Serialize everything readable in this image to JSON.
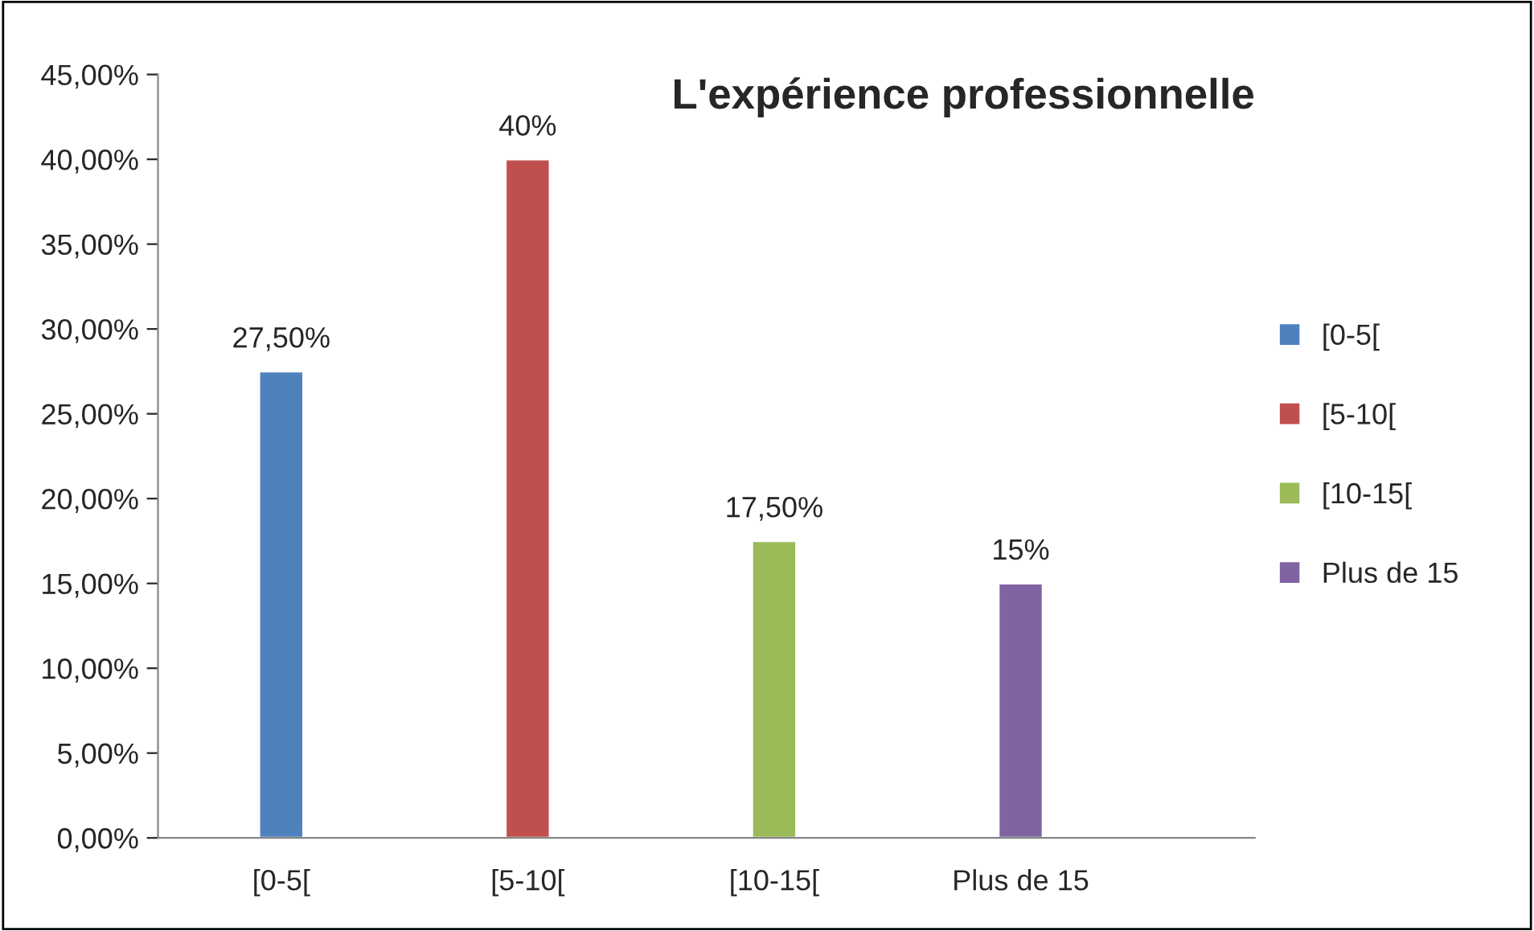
{
  "chart_data": {
    "type": "bar",
    "title": "L'expérience professionnelle",
    "categories": [
      "[0-5[",
      "[5-10[",
      "[10-15[",
      "Plus de 15"
    ],
    "series": [
      {
        "name": "[0-5[",
        "color": "#4f81bd",
        "values": [
          27.5,
          null,
          null,
          null
        ],
        "value_labels": [
          "27,50%",
          null,
          null,
          null
        ]
      },
      {
        "name": "[5-10[",
        "color": "#c0504d",
        "values": [
          null,
          40,
          null,
          null
        ],
        "value_labels": [
          null,
          "40%",
          null,
          null
        ]
      },
      {
        "name": "[10-15[",
        "color": "#9bbb59",
        "values": [
          null,
          null,
          17.5,
          null
        ],
        "value_labels": [
          null,
          null,
          "17,50%",
          null
        ]
      },
      {
        "name": "Plus de 15",
        "color": "#8064a2",
        "values": [
          null,
          null,
          null,
          15
        ],
        "value_labels": [
          null,
          null,
          null,
          "15%"
        ]
      }
    ],
    "ylim": [
      0,
      45
    ],
    "yticks": [
      {
        "value": 0,
        "label": "0,00%"
      },
      {
        "value": 5,
        "label": "5,00%"
      },
      {
        "value": 10,
        "label": "10,00%"
      },
      {
        "value": 15,
        "label": "15,00%"
      },
      {
        "value": 20,
        "label": "20,00%"
      },
      {
        "value": 25,
        "label": "25,00%"
      },
      {
        "value": 30,
        "label": "30,00%"
      },
      {
        "value": 35,
        "label": "35,00%"
      },
      {
        "value": 40,
        "label": "40,00%"
      },
      {
        "value": 45,
        "label": "45,00%"
      }
    ],
    "grid": false,
    "legend": "right"
  }
}
